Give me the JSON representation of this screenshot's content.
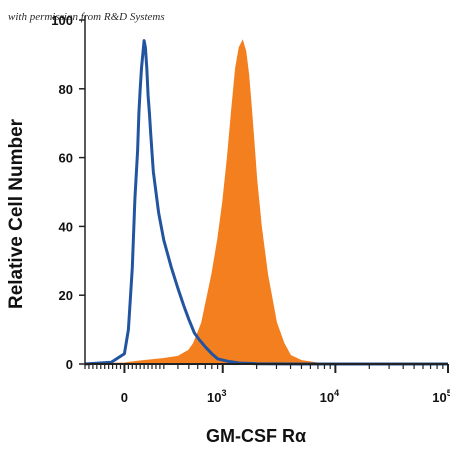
{
  "watermark": "with permission from R&D Systems",
  "chart_data": {
    "type": "area",
    "title": "",
    "xlabel": "GM-CSF Rα",
    "ylabel": "Relative Cell Number",
    "x_scale": "biexponential",
    "xlim": [
      -300,
      100000
    ],
    "ylim": [
      0,
      100
    ],
    "grid": false,
    "legend": "none",
    "y_ticks": [
      "0",
      "20",
      "40",
      "60",
      "80",
      "100"
    ],
    "x_ticks": [
      {
        "base": "0",
        "exp": ""
      },
      {
        "base": "10",
        "exp": "3"
      },
      {
        "base": "10",
        "exp": "4"
      },
      {
        "base": "10",
        "exp": "5"
      }
    ],
    "series": [
      {
        "style": "outline",
        "color": "#2354a0",
        "x": [
          -300,
          -100,
          0,
          30,
          60,
          80,
          100,
          110,
          120,
          130,
          140,
          150,
          160,
          170,
          180,
          190,
          200,
          220,
          260,
          300,
          350,
          400,
          450,
          500,
          560,
          620,
          700,
          800,
          900,
          1100,
          1400,
          2000,
          5000,
          100000
        ],
        "y": [
          0,
          0.5,
          3,
          10,
          28,
          48,
          62,
          73,
          80,
          86,
          90,
          94,
          92,
          86,
          78,
          73,
          67,
          56,
          44,
          36,
          28,
          22,
          17,
          13,
          9,
          7,
          5,
          3,
          1.5,
          0.8,
          0.3,
          0.1,
          0,
          0
        ]
      },
      {
        "style": "filled",
        "color": "#f47f1f",
        "x": [
          -300,
          0,
          100,
          200,
          300,
          400,
          500,
          550,
          600,
          650,
          700,
          800,
          900,
          1000,
          1100,
          1200,
          1300,
          1400,
          1500,
          1600,
          1700,
          1800,
          1900,
          2000,
          2200,
          2500,
          3000,
          3500,
          4000,
          5000,
          7000,
          100000
        ],
        "y": [
          0,
          0.3,
          0.8,
          1.2,
          1.6,
          2.2,
          4,
          6,
          9,
          12,
          17,
          26,
          36,
          47,
          60,
          74,
          86,
          92,
          94,
          91,
          84,
          74,
          64,
          54,
          40,
          26,
          12,
          6,
          2.5,
          1,
          0.3,
          0
        ]
      }
    ]
  }
}
